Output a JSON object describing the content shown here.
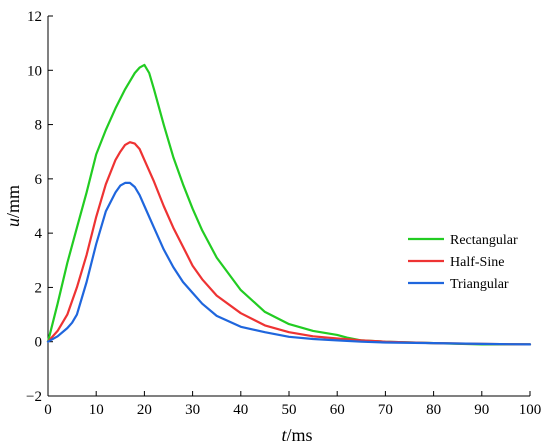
{
  "chart_data": {
    "type": "line",
    "xlabel_italic": "t",
    "xlabel_unit": "/ms",
    "ylabel_italic": "u",
    "ylabel_unit": "/mm",
    "xlim": [
      0,
      100
    ],
    "ylim": [
      -2,
      12
    ],
    "x_ticks": [
      0,
      10,
      20,
      30,
      40,
      50,
      60,
      70,
      80,
      90,
      100
    ],
    "y_ticks": [
      -2,
      0,
      2,
      4,
      6,
      8,
      10,
      12
    ],
    "grid": false,
    "legend_position": "right",
    "series": [
      {
        "name": "Rectangular",
        "color": "#22cc22",
        "x": [
          0,
          2,
          4,
          6,
          8,
          10,
          12,
          14,
          16,
          18,
          19,
          20,
          21,
          22,
          24,
          26,
          28,
          30,
          32,
          35,
          40,
          45,
          50,
          55,
          60,
          62,
          65,
          70,
          80,
          90,
          100
        ],
        "y": [
          0,
          1.4,
          2.9,
          4.2,
          5.5,
          6.9,
          7.8,
          8.6,
          9.3,
          9.9,
          10.1,
          10.2,
          9.9,
          9.3,
          8.0,
          6.8,
          5.8,
          4.9,
          4.1,
          3.1,
          1.9,
          1.1,
          0.65,
          0.4,
          0.25,
          0.15,
          0.05,
          0.0,
          -0.05,
          -0.1,
          -0.1
        ]
      },
      {
        "name": "Half-Sine",
        "color": "#ee3333",
        "x": [
          0,
          2,
          4,
          6,
          8,
          10,
          12,
          14,
          15,
          16,
          17,
          18,
          19,
          20,
          22,
          24,
          26,
          28,
          30,
          32,
          35,
          40,
          45,
          50,
          55,
          60,
          65,
          70,
          80,
          90,
          100
        ],
        "y": [
          0,
          0.4,
          1.0,
          2.0,
          3.2,
          4.6,
          5.8,
          6.7,
          7.0,
          7.25,
          7.35,
          7.3,
          7.1,
          6.7,
          5.9,
          5.0,
          4.2,
          3.5,
          2.8,
          2.3,
          1.7,
          1.05,
          0.6,
          0.35,
          0.2,
          0.12,
          0.05,
          0.0,
          -0.05,
          -0.08,
          -0.1
        ]
      },
      {
        "name": "Triangular",
        "color": "#1f66dd",
        "x": [
          0,
          2,
          4,
          5,
          6,
          8,
          10,
          12,
          14,
          15,
          16,
          17,
          18,
          19,
          20,
          22,
          24,
          26,
          28,
          30,
          32,
          35,
          40,
          45,
          50,
          55,
          60,
          65,
          70,
          80,
          90,
          100
        ],
        "y": [
          0,
          0.2,
          0.5,
          0.7,
          1.0,
          2.2,
          3.6,
          4.8,
          5.5,
          5.75,
          5.85,
          5.85,
          5.7,
          5.4,
          5.0,
          4.2,
          3.4,
          2.75,
          2.2,
          1.8,
          1.4,
          0.95,
          0.55,
          0.35,
          0.18,
          0.1,
          0.05,
          0.0,
          -0.03,
          -0.05,
          -0.08,
          -0.1
        ]
      }
    ]
  }
}
